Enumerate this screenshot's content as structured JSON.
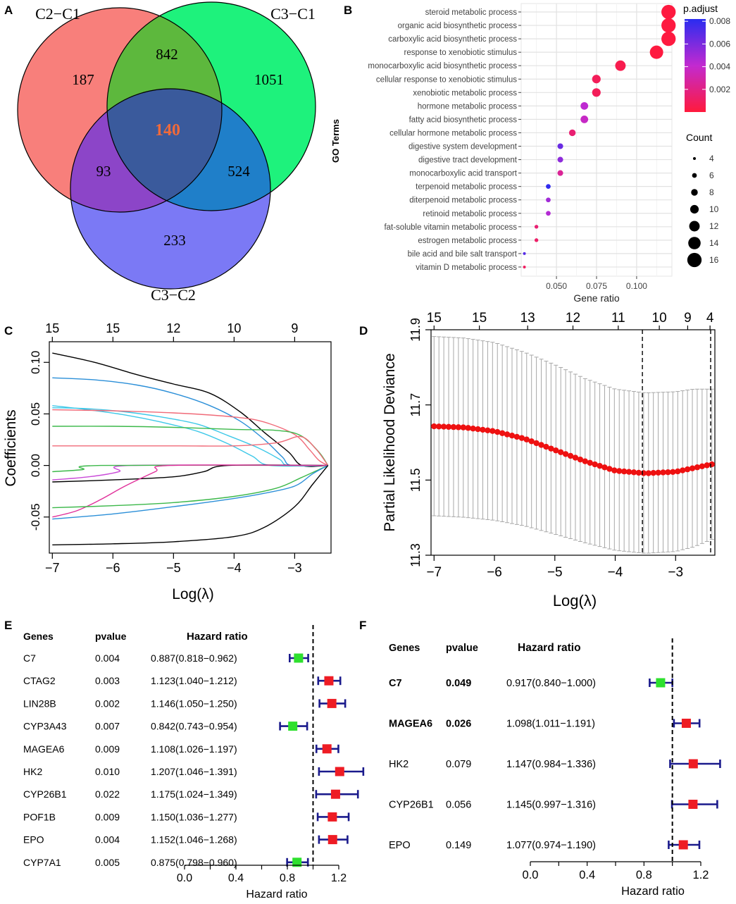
{
  "panels": {
    "A": "A",
    "B": "B",
    "C": "C",
    "D": "D",
    "E": "E",
    "F": "F"
  },
  "venn": {
    "set_labels": [
      "C2−C1",
      "C3−C1",
      "C3−C2"
    ],
    "regions": {
      "only_a": "187",
      "only_b": "1051",
      "only_c": "233",
      "ab": "842",
      "ac": "93",
      "bc": "524",
      "abc": "140"
    },
    "colors": {
      "a": "#f87f7b",
      "b": "#1ef27c",
      "c": "#7b79f5",
      "ab": "#5db83d",
      "ac": "#8c45c8",
      "bc": "#1f7fc9",
      "abc": "#3a5a9c",
      "center_text": "#f06a3a"
    }
  },
  "chart_data": [
    {
      "panel": "B",
      "type": "scatter",
      "subtype": "dotplot",
      "ylabel": "GO Terms",
      "xlabel": "Gene ratio",
      "xticks": [
        0.05,
        0.075,
        0.1
      ],
      "xtick_labels": [
        "0.050",
        "0.075",
        "0.100"
      ],
      "xlim": [
        0.028,
        0.122
      ],
      "terms": [
        "steroid metabolic process",
        "organic acid biosynthetic process",
        "carboxylic acid biosynthetic process",
        "response to xenobiotic stimulus",
        "monocarboxylic acid biosynthetic process",
        "cellular response to xenobiotic stimulus",
        "xenobiotic metabolic process",
        "hormone metabolic process",
        "fatty acid biosynthetic process",
        "cellular hormone metabolic process",
        "digestive system development",
        "digestive tract development",
        "monocarboxylic acid transport",
        "terpenoid metabolic process",
        "diterpenoid metabolic process",
        "retinoid metabolic process",
        "fat-soluble vitamin metabolic process",
        "estrogen metabolic process",
        "bile acid and bile salt transport",
        "vitamin D metabolic process"
      ],
      "gene_ratio": [
        0.1199,
        0.1199,
        0.1199,
        0.1124,
        0.0899,
        0.0749,
        0.0749,
        0.0674,
        0.0674,
        0.0599,
        0.0524,
        0.0524,
        0.0524,
        0.0449,
        0.0449,
        0.0449,
        0.0375,
        0.0375,
        0.03,
        0.03
      ],
      "count": [
        16,
        16,
        16,
        15,
        12,
        10,
        10,
        9,
        9,
        8,
        7,
        7,
        7,
        6,
        6,
        6,
        5,
        5,
        4,
        4
      ],
      "p_adjust": [
        0.0001,
        0.0001,
        0.0001,
        0.0001,
        0.0005,
        0.0008,
        0.0008,
        0.0042,
        0.0038,
        0.0015,
        0.0065,
        0.0055,
        0.0025,
        0.008,
        0.005,
        0.0045,
        0.0015,
        0.0012,
        0.007,
        0.001
      ],
      "color_legend": {
        "title": "p.adjust",
        "ticks": [
          "0.008",
          "0.006",
          "0.004",
          "0.002"
        ]
      },
      "size_legend": {
        "title": "Count",
        "values": [
          "4",
          "6",
          "8",
          "10",
          "12",
          "14",
          "16"
        ]
      }
    },
    {
      "panel": "C",
      "type": "line",
      "xlabel": "Log(λ)",
      "ylabel": "Coefficients",
      "xlim": [
        -7.05,
        -2.4
      ],
      "ylim": [
        -0.085,
        0.12
      ],
      "xticks": [
        -7,
        -6,
        -5,
        -4,
        -3
      ],
      "yticks": [
        -0.05,
        0,
        0.05,
        0.1
      ],
      "ytick_labels": [
        "-0.05",
        "0.00",
        "0.05",
        "0.10"
      ],
      "top_ticks": [
        {
          "x": -7,
          "label": "15"
        },
        {
          "x": -6,
          "label": "15"
        },
        {
          "x": -5,
          "label": "12"
        },
        {
          "x": -4,
          "label": "10"
        },
        {
          "x": -3,
          "label": "9"
        }
      ],
      "series": [
        {
          "color": "#000000",
          "points": [
            [
              -7,
              0.109
            ],
            [
              -6.3,
              0.1
            ],
            [
              -5.6,
              0.088
            ],
            [
              -5,
              0.079
            ],
            [
              -4.4,
              0.07
            ],
            [
              -3.9,
              0.052
            ],
            [
              -3.5,
              0.032
            ],
            [
              -3.1,
              0.013
            ],
            [
              -2.88,
              0
            ],
            [
              -2.45,
              0
            ]
          ]
        },
        {
          "color": "#2b8fd8",
          "points": [
            [
              -7,
              0.085
            ],
            [
              -6.3,
              0.083
            ],
            [
              -5.6,
              0.078
            ],
            [
              -5,
              0.07
            ],
            [
              -4.4,
              0.058
            ],
            [
              -3.9,
              0.043
            ],
            [
              -3.5,
              0.025
            ],
            [
              -3.2,
              0.008
            ],
            [
              -3.05,
              0
            ],
            [
              -2.45,
              0
            ]
          ]
        },
        {
          "color": "#3ec8e8",
          "points": [
            [
              -7,
              0.058
            ],
            [
              -6.4,
              0.054
            ],
            [
              -5.8,
              0.049
            ],
            [
              -5.2,
              0.042
            ],
            [
              -4.6,
              0.033
            ],
            [
              -4.1,
              0.021
            ],
            [
              -3.7,
              0.009
            ],
            [
              -3.4,
              0
            ],
            [
              -2.45,
              0
            ]
          ]
        },
        {
          "color": "#3ec8e8",
          "points": [
            [
              -7,
              0.056
            ],
            [
              -6.4,
              0.055
            ],
            [
              -5.8,
              0.052
            ],
            [
              -5.2,
              0.047
            ],
            [
              -4.6,
              0.04
            ],
            [
              -4.1,
              0.029
            ],
            [
              -3.6,
              0.017
            ],
            [
              -3.25,
              0.006
            ],
            [
              -3.1,
              0
            ],
            [
              -2.45,
              0
            ]
          ]
        },
        {
          "color": "#f06a78",
          "points": [
            [
              -7,
              0.054
            ],
            [
              -6,
              0.053
            ],
            [
              -5,
              0.051
            ],
            [
              -4,
              0.047
            ],
            [
              -3.5,
              0.042
            ],
            [
              -3,
              0.03
            ],
            [
              -2.75,
              0.015
            ],
            [
              -2.6,
              0.005
            ],
            [
              -2.45,
              0
            ]
          ]
        },
        {
          "color": "#3cb84a",
          "points": [
            [
              -7,
              0.038
            ],
            [
              -6,
              0.038
            ],
            [
              -5,
              0.037
            ],
            [
              -4,
              0.035
            ],
            [
              -3.3,
              0.034
            ],
            [
              -2.9,
              0.029
            ],
            [
              -2.6,
              0.013
            ],
            [
              -2.45,
              0
            ]
          ]
        },
        {
          "color": "#f06a78",
          "points": [
            [
              -7,
              0.019
            ],
            [
              -5,
              0.019
            ],
            [
              -4,
              0.019
            ],
            [
              -3.3,
              0.022
            ],
            [
              -2.9,
              0.028
            ],
            [
              -2.65,
              0.016
            ],
            [
              -2.45,
              0
            ]
          ]
        },
        {
          "color": "#c94ad8",
          "points": [
            [
              -7,
              -0.014
            ],
            [
              -6.4,
              -0.011
            ],
            [
              -5.9,
              -0.006
            ],
            [
              -5.7,
              0
            ],
            [
              -2.45,
              0
            ]
          ]
        },
        {
          "color": "#3cb84a",
          "points": [
            [
              -7,
              -0.006
            ],
            [
              -6.5,
              -0.004
            ],
            [
              -6.2,
              0
            ],
            [
              -2.45,
              0
            ]
          ]
        },
        {
          "color": "#000000",
          "points": [
            [
              -7,
              -0.016
            ],
            [
              -6,
              -0.014
            ],
            [
              -5,
              -0.011
            ],
            [
              -4.5,
              -0.006
            ],
            [
              -4.1,
              0
            ],
            [
              -2.45,
              0
            ]
          ]
        },
        {
          "color": "#e0309a",
          "points": [
            [
              -7,
              -0.05
            ],
            [
              -6.6,
              -0.044
            ],
            [
              -6.2,
              -0.033
            ],
            [
              -5.8,
              -0.02
            ],
            [
              -5.3,
              -0.006
            ],
            [
              -5.05,
              0
            ],
            [
              -2.45,
              0
            ]
          ]
        },
        {
          "color": "#3cb84a",
          "points": [
            [
              -7,
              -0.041
            ],
            [
              -6,
              -0.039
            ],
            [
              -5,
              -0.036
            ],
            [
              -4,
              -0.03
            ],
            [
              -3.3,
              -0.022
            ],
            [
              -2.9,
              -0.012
            ],
            [
              -2.6,
              -0.004
            ],
            [
              -2.45,
              0
            ]
          ]
        },
        {
          "color": "#2b8fd8",
          "points": [
            [
              -7,
              -0.052
            ],
            [
              -6,
              -0.047
            ],
            [
              -5,
              -0.04
            ],
            [
              -4,
              -0.032
            ],
            [
              -3.5,
              -0.027
            ],
            [
              -3,
              -0.02
            ],
            [
              -2.7,
              -0.008
            ],
            [
              -2.45,
              0
            ]
          ]
        },
        {
          "color": "#000000",
          "points": [
            [
              -7,
              -0.077
            ],
            [
              -6,
              -0.076
            ],
            [
              -5,
              -0.074
            ],
            [
              -4,
              -0.069
            ],
            [
              -3.5,
              -0.06
            ],
            [
              -3,
              -0.04
            ],
            [
              -2.7,
              -0.018
            ],
            [
              -2.45,
              0
            ]
          ]
        }
      ]
    },
    {
      "panel": "D",
      "type": "line",
      "subtype": "cv-curve",
      "xlabel": "Log(λ)",
      "ylabel": "Partial Likelihood Deviance",
      "xlim": [
        -7.05,
        -2.35
      ],
      "ylim": [
        11.3,
        11.9
      ],
      "xticks": [
        -7,
        -6,
        -5,
        -4,
        -3
      ],
      "yticks": [
        11.3,
        11.5,
        11.7,
        11.9
      ],
      "ytick_labels": [
        "11.3",
        "11.5",
        "11.7",
        "11.9"
      ],
      "top_ticks": [
        {
          "x": -7,
          "label": "15"
        },
        {
          "x": -6.25,
          "label": "15"
        },
        {
          "x": -5.45,
          "label": "13"
        },
        {
          "x": -4.7,
          "label": "12"
        },
        {
          "x": -3.95,
          "label": "11"
        },
        {
          "x": -3.27,
          "label": "10"
        },
        {
          "x": -2.8,
          "label": "9"
        },
        {
          "x": -2.43,
          "label": "4"
        }
      ],
      "lambda_min": -3.55,
      "lambda_1se": -2.42,
      "mean_curve": [
        [
          -7,
          11.643
        ],
        [
          -6.5,
          11.64
        ],
        [
          -6,
          11.63
        ],
        [
          -5.5,
          11.61
        ],
        [
          -5,
          11.58
        ],
        [
          -4.5,
          11.55
        ],
        [
          -4,
          11.525
        ],
        [
          -3.5,
          11.518
        ],
        [
          -3,
          11.522
        ],
        [
          -2.7,
          11.532
        ],
        [
          -2.4,
          11.542
        ]
      ],
      "upper_curve": [
        [
          -7,
          11.882
        ],
        [
          -6.5,
          11.878
        ],
        [
          -6,
          11.866
        ],
        [
          -5.5,
          11.84
        ],
        [
          -5,
          11.807
        ],
        [
          -4.5,
          11.77
        ],
        [
          -4,
          11.742
        ],
        [
          -3.5,
          11.732
        ],
        [
          -3,
          11.735
        ],
        [
          -2.7,
          11.742
        ],
        [
          -2.4,
          11.742
        ]
      ],
      "lower_curve": [
        [
          -7,
          11.405
        ],
        [
          -6.5,
          11.401
        ],
        [
          -6,
          11.393
        ],
        [
          -5.5,
          11.378
        ],
        [
          -5,
          11.356
        ],
        [
          -4.5,
          11.333
        ],
        [
          -4,
          11.313
        ],
        [
          -3.5,
          11.305
        ],
        [
          -3,
          11.31
        ],
        [
          -2.7,
          11.322
        ],
        [
          -2.4,
          11.342
        ]
      ]
    },
    {
      "panel": "E",
      "type": "scatter",
      "subtype": "forest",
      "xlabel": "Hazard ratio",
      "xlim": [
        0,
        1.2
      ],
      "xticks": [
        0,
        0.4,
        0.8,
        1.2
      ],
      "xtick_labels": [
        "0.0",
        "0.4",
        "0.8",
        "1.2"
      ],
      "ref_line": 1.0,
      "headers": {
        "gene": "Genes",
        "pvalue": "pvalue",
        "hr": "Hazard ratio"
      },
      "rows": [
        {
          "gene": "C7",
          "pvalue": "0.004",
          "hr_text": "0.887(0.818−0.962)",
          "hr": 0.887,
          "lo": 0.818,
          "hi": 0.962,
          "color": "#2ee02e"
        },
        {
          "gene": "CTAG2",
          "pvalue": "0.003",
          "hr_text": "1.123(1.040−1.212)",
          "hr": 1.123,
          "lo": 1.04,
          "hi": 1.212,
          "color": "#ee1c24"
        },
        {
          "gene": "LIN28B",
          "pvalue": "0.002",
          "hr_text": "1.146(1.050−1.250)",
          "hr": 1.146,
          "lo": 1.05,
          "hi": 1.25,
          "color": "#ee1c24"
        },
        {
          "gene": "CYP3A43",
          "pvalue": "0.007",
          "hr_text": "0.842(0.743−0.954)",
          "hr": 0.842,
          "lo": 0.743,
          "hi": 0.954,
          "color": "#2ee02e"
        },
        {
          "gene": "MAGEA6",
          "pvalue": "0.009",
          "hr_text": "1.108(1.026−1.197)",
          "hr": 1.108,
          "lo": 1.026,
          "hi": 1.197,
          "color": "#ee1c24"
        },
        {
          "gene": "HK2",
          "pvalue": "0.010",
          "hr_text": "1.207(1.046−1.391)",
          "hr": 1.207,
          "lo": 1.046,
          "hi": 1.391,
          "color": "#ee1c24"
        },
        {
          "gene": "CYP26B1",
          "pvalue": "0.022",
          "hr_text": "1.175(1.024−1.349)",
          "hr": 1.175,
          "lo": 1.024,
          "hi": 1.349,
          "color": "#ee1c24"
        },
        {
          "gene": "POF1B",
          "pvalue": "0.009",
          "hr_text": "1.150(1.036−1.277)",
          "hr": 1.15,
          "lo": 1.036,
          "hi": 1.277,
          "color": "#ee1c24"
        },
        {
          "gene": "EPO",
          "pvalue": "0.004",
          "hr_text": "1.152(1.046−1.268)",
          "hr": 1.152,
          "lo": 1.046,
          "hi": 1.268,
          "color": "#ee1c24"
        },
        {
          "gene": "CYP7A1",
          "pvalue": "0.005",
          "hr_text": "0.875(0.798−0.960)",
          "hr": 0.875,
          "lo": 0.798,
          "hi": 0.96,
          "color": "#2ee02e"
        }
      ]
    },
    {
      "panel": "F",
      "type": "scatter",
      "subtype": "forest",
      "xlabel": "Hazard ratio",
      "xlim": [
        0,
        1.2
      ],
      "xticks": [
        0,
        0.4,
        0.8,
        1.2
      ],
      "xtick_labels": [
        "0.0",
        "0.4",
        "0.8",
        "1.2"
      ],
      "ref_line": 1.0,
      "headers": {
        "gene": "Genes",
        "pvalue": "pvalue",
        "hr": "Hazard ratio"
      },
      "rows": [
        {
          "gene": "C7",
          "pvalue": "0.049",
          "hr_text": "0.917(0.840−1.000)",
          "hr": 0.917,
          "lo": 0.84,
          "hi": 1.0,
          "color": "#2ee02e",
          "bold": true
        },
        {
          "gene": "MAGEA6",
          "pvalue": "0.026",
          "hr_text": "1.098(1.011−1.191)",
          "hr": 1.098,
          "lo": 1.011,
          "hi": 1.191,
          "color": "#ee1c24",
          "bold": true
        },
        {
          "gene": "HK2",
          "pvalue": "0.079",
          "hr_text": "1.147(0.984−1.336)",
          "hr": 1.147,
          "lo": 0.984,
          "hi": 1.336,
          "color": "#ee1c24",
          "bold": false
        },
        {
          "gene": "CYP26B1",
          "pvalue": "0.056",
          "hr_text": "1.145(0.997−1.316)",
          "hr": 1.145,
          "lo": 0.997,
          "hi": 1.316,
          "color": "#ee1c24",
          "bold": false
        },
        {
          "gene": "EPO",
          "pvalue": "0.149",
          "hr_text": "1.077(0.974−1.190)",
          "hr": 1.077,
          "lo": 0.974,
          "hi": 1.19,
          "color": "#ee1c24",
          "bold": false
        }
      ]
    }
  ]
}
